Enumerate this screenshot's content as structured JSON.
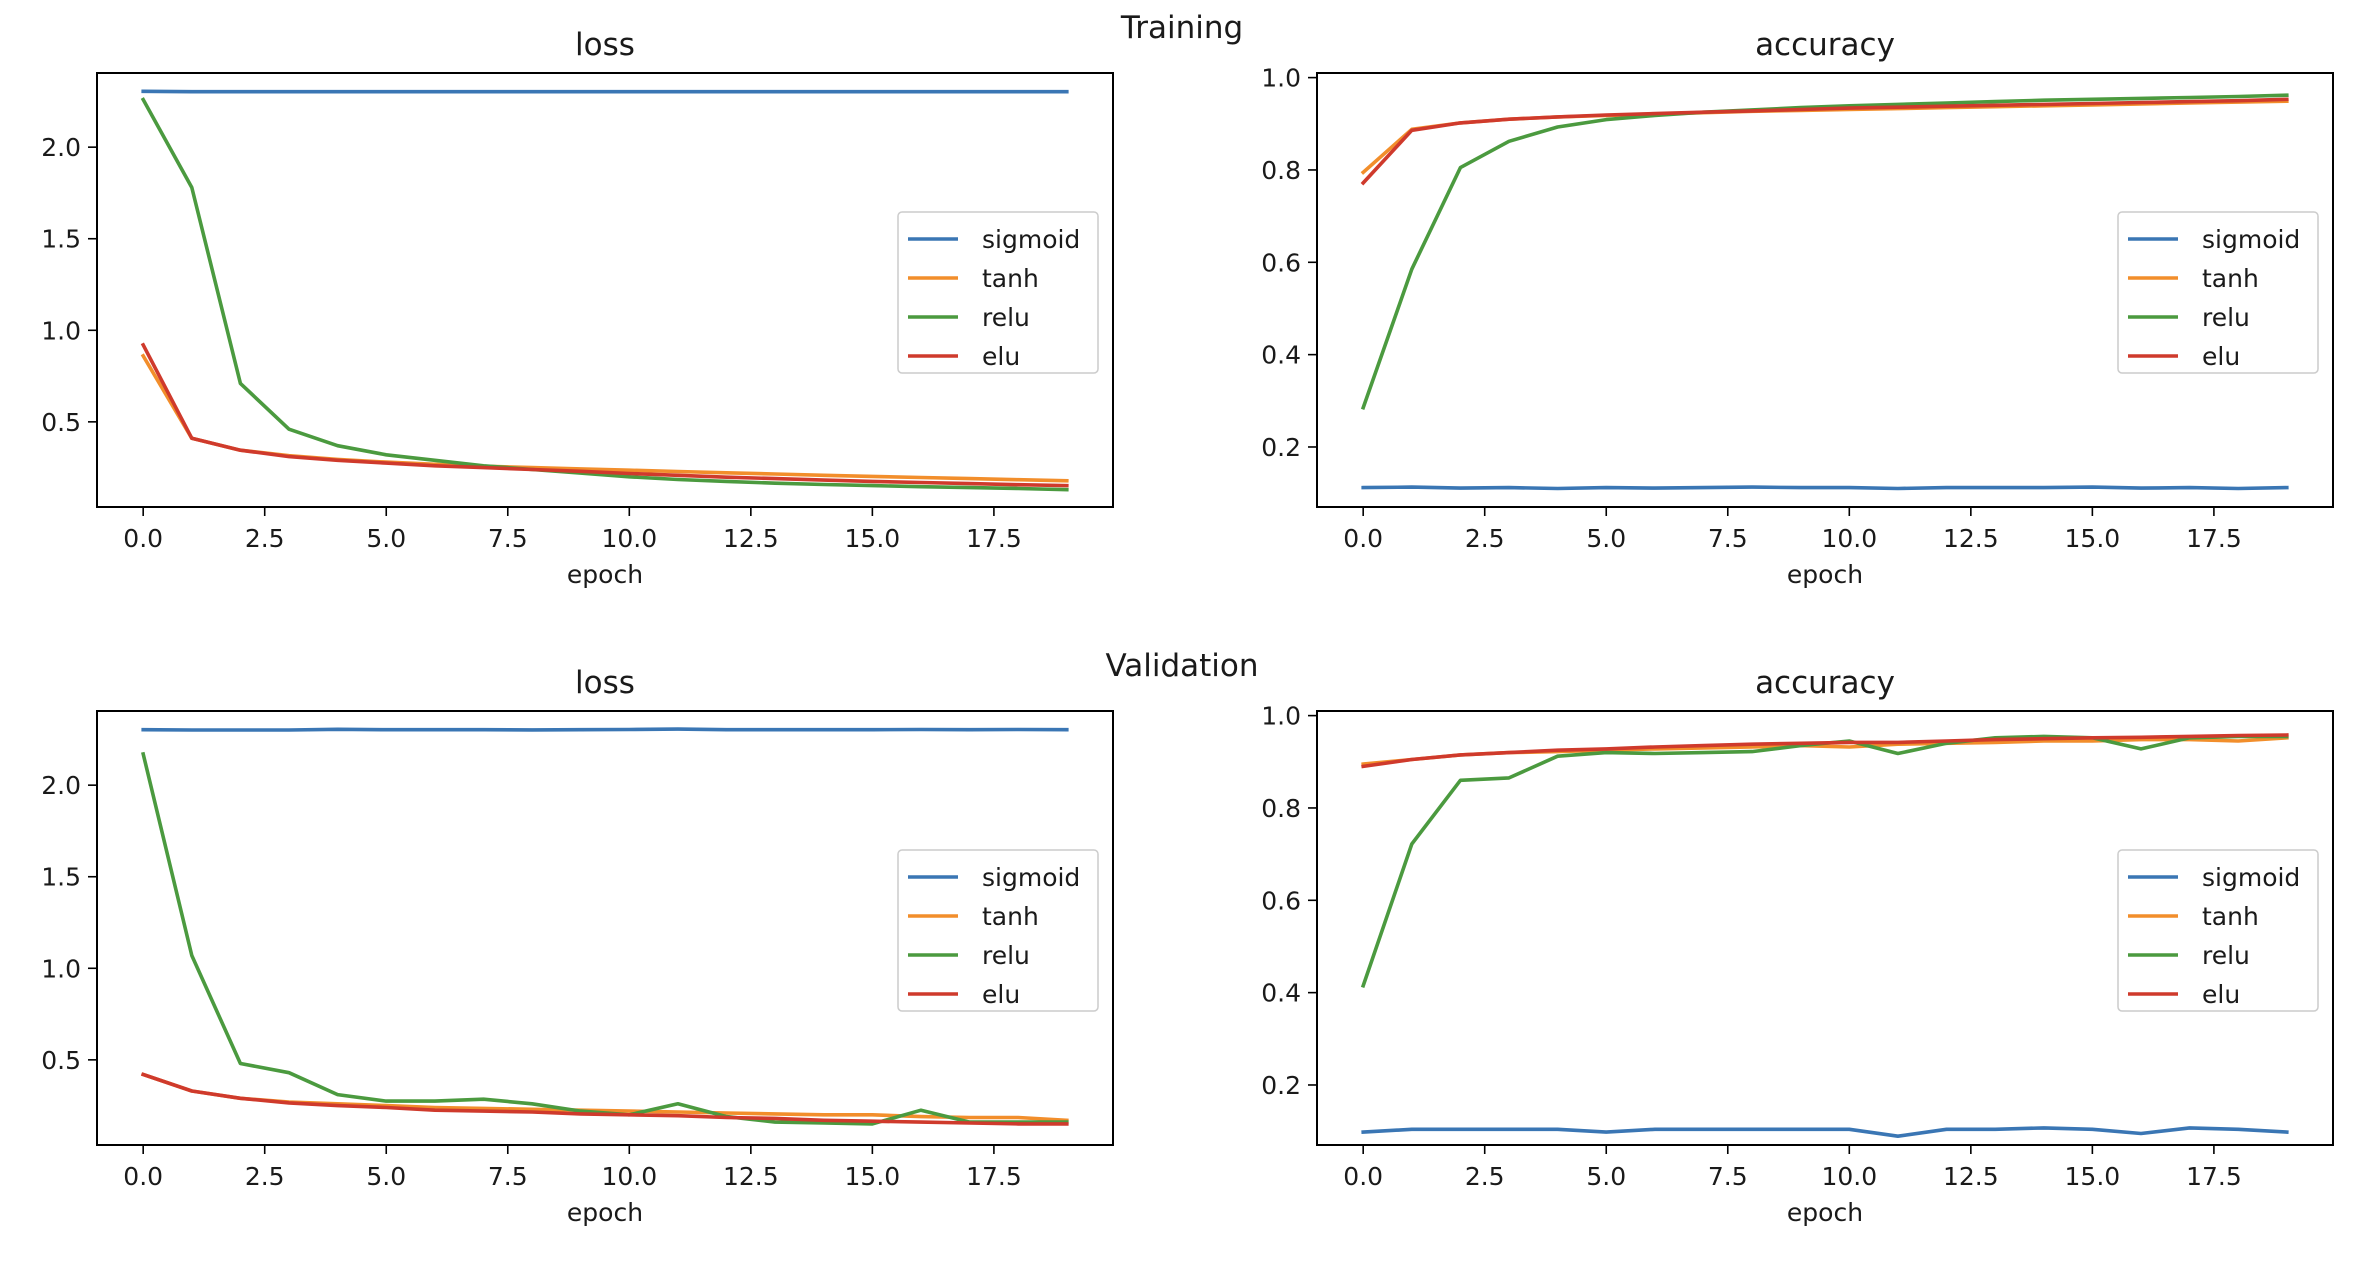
{
  "figure": {
    "title_training": "Training",
    "title_validation": "Validation"
  },
  "colors": {
    "sigmoid": "#3a76b4",
    "tanh": "#f28e2b",
    "relu": "#4b9a3f",
    "elu": "#cf3a2c"
  },
  "chart_data": [
    {
      "id": "training-loss",
      "type": "line",
      "title": "loss",
      "xlabel": "epoch",
      "ylabel": "",
      "xlim": [
        -0.95,
        19.95
      ],
      "ylim": [
        0.035,
        2.405
      ],
      "xticks": [
        0,
        2.5,
        5,
        7.5,
        10,
        12.5,
        15,
        17.5
      ],
      "xtick_labels": [
        "0.0",
        "2.5",
        "5.0",
        "7.5",
        "10.0",
        "12.5",
        "15.0",
        "17.5"
      ],
      "yticks": [
        0.5,
        1.0,
        1.5,
        2.0
      ],
      "ytick_labels": [
        "0.5",
        "1.0",
        "1.5",
        "2.0"
      ],
      "legend": {
        "position": "center-right",
        "entries": [
          "sigmoid",
          "tanh",
          "relu",
          "elu"
        ]
      },
      "x": [
        0,
        1,
        2,
        3,
        4,
        5,
        6,
        7,
        8,
        9,
        10,
        11,
        12,
        13,
        14,
        15,
        16,
        17,
        18,
        19
      ],
      "series": [
        {
          "name": "sigmoid",
          "values": [
            2.305,
            2.303,
            2.303,
            2.303,
            2.303,
            2.303,
            2.303,
            2.303,
            2.303,
            2.303,
            2.303,
            2.303,
            2.303,
            2.303,
            2.303,
            2.303,
            2.303,
            2.303,
            2.303,
            2.303
          ]
        },
        {
          "name": "tanh",
          "values": [
            0.86,
            0.41,
            0.345,
            0.315,
            0.295,
            0.28,
            0.268,
            0.258,
            0.25,
            0.243,
            0.236,
            0.229,
            0.222,
            0.215,
            0.208,
            0.202,
            0.196,
            0.19,
            0.184,
            0.178
          ]
        },
        {
          "name": "relu",
          "values": [
            2.26,
            1.78,
            0.71,
            0.46,
            0.37,
            0.32,
            0.29,
            0.26,
            0.24,
            0.22,
            0.2,
            0.185,
            0.175,
            0.165,
            0.158,
            0.152,
            0.146,
            0.141,
            0.136,
            0.13
          ]
        },
        {
          "name": "elu",
          "values": [
            0.92,
            0.41,
            0.345,
            0.31,
            0.29,
            0.275,
            0.26,
            0.25,
            0.24,
            0.23,
            0.218,
            0.208,
            0.198,
            0.19,
            0.182,
            0.175,
            0.169,
            0.163,
            0.157,
            0.152
          ]
        }
      ]
    },
    {
      "id": "training-accuracy",
      "type": "line",
      "title": "accuracy",
      "xlabel": "epoch",
      "ylabel": "",
      "xlim": [
        -0.95,
        19.95
      ],
      "ylim": [
        0.07,
        1.01
      ],
      "xticks": [
        0,
        2.5,
        5,
        7.5,
        10,
        12.5,
        15,
        17.5
      ],
      "xtick_labels": [
        "0.0",
        "2.5",
        "5.0",
        "7.5",
        "10.0",
        "12.5",
        "15.0",
        "17.5"
      ],
      "yticks": [
        0.2,
        0.4,
        0.6,
        0.8,
        1.0
      ],
      "ytick_labels": [
        "0.2",
        "0.4",
        "0.6",
        "0.8",
        "1.0"
      ],
      "legend": {
        "position": "center-right",
        "entries": [
          "sigmoid",
          "tanh",
          "relu",
          "elu"
        ]
      },
      "x": [
        0,
        1,
        2,
        3,
        4,
        5,
        6,
        7,
        8,
        9,
        10,
        11,
        12,
        13,
        14,
        15,
        16,
        17,
        18,
        19
      ],
      "series": [
        {
          "name": "sigmoid",
          "values": [
            0.112,
            0.113,
            0.111,
            0.112,
            0.11,
            0.112,
            0.111,
            0.112,
            0.113,
            0.112,
            0.112,
            0.11,
            0.112,
            0.112,
            0.112,
            0.113,
            0.111,
            0.112,
            0.11,
            0.112
          ]
        },
        {
          "name": "tanh",
          "values": [
            0.795,
            0.888,
            0.902,
            0.91,
            0.915,
            0.918,
            0.921,
            0.924,
            0.927,
            0.929,
            0.931,
            0.933,
            0.935,
            0.937,
            0.939,
            0.941,
            0.943,
            0.945,
            0.947,
            0.949
          ]
        },
        {
          "name": "relu",
          "values": [
            0.285,
            0.585,
            0.805,
            0.862,
            0.893,
            0.909,
            0.918,
            0.925,
            0.93,
            0.935,
            0.939,
            0.942,
            0.945,
            0.948,
            0.951,
            0.953,
            0.955,
            0.957,
            0.959,
            0.962
          ]
        },
        {
          "name": "elu",
          "values": [
            0.772,
            0.886,
            0.902,
            0.91,
            0.915,
            0.919,
            0.922,
            0.925,
            0.928,
            0.931,
            0.934,
            0.936,
            0.938,
            0.94,
            0.942,
            0.944,
            0.946,
            0.948,
            0.95,
            0.953
          ]
        }
      ]
    },
    {
      "id": "validation-loss",
      "type": "line",
      "title": "loss",
      "xlabel": "epoch",
      "ylabel": "",
      "xlim": [
        -0.95,
        19.95
      ],
      "ylim": [
        0.035,
        2.405
      ],
      "xticks": [
        0,
        2.5,
        5,
        7.5,
        10,
        12.5,
        15,
        17.5
      ],
      "xtick_labels": [
        "0.0",
        "2.5",
        "5.0",
        "7.5",
        "10.0",
        "12.5",
        "15.0",
        "17.5"
      ],
      "yticks": [
        0.5,
        1.0,
        1.5,
        2.0
      ],
      "ytick_labels": [
        "0.5",
        "1.0",
        "1.5",
        "2.0"
      ],
      "legend": {
        "position": "center-right",
        "entries": [
          "sigmoid",
          "tanh",
          "relu",
          "elu"
        ]
      },
      "x": [
        0,
        1,
        2,
        3,
        4,
        5,
        6,
        7,
        8,
        9,
        10,
        11,
        12,
        13,
        14,
        15,
        16,
        17,
        18,
        19
      ],
      "series": [
        {
          "name": "sigmoid",
          "values": [
            2.303,
            2.301,
            2.301,
            2.301,
            2.305,
            2.303,
            2.303,
            2.303,
            2.302,
            2.303,
            2.304,
            2.306,
            2.303,
            2.303,
            2.303,
            2.303,
            2.304,
            2.303,
            2.304,
            2.303
          ]
        },
        {
          "name": "tanh",
          "values": [
            0.42,
            0.33,
            0.29,
            0.27,
            0.26,
            0.25,
            0.24,
            0.235,
            0.23,
            0.225,
            0.22,
            0.215,
            0.21,
            0.205,
            0.2,
            0.2,
            0.19,
            0.185,
            0.185,
            0.17
          ]
        },
        {
          "name": "relu",
          "values": [
            2.17,
            1.07,
            0.48,
            0.43,
            0.31,
            0.275,
            0.275,
            0.285,
            0.26,
            0.22,
            0.2,
            0.26,
            0.19,
            0.16,
            0.155,
            0.15,
            0.225,
            0.16,
            0.16,
            0.16
          ]
        },
        {
          "name": "elu",
          "values": [
            0.42,
            0.33,
            0.29,
            0.265,
            0.25,
            0.24,
            0.225,
            0.22,
            0.215,
            0.205,
            0.2,
            0.195,
            0.185,
            0.18,
            0.17,
            0.165,
            0.16,
            0.155,
            0.15,
            0.15
          ]
        }
      ]
    },
    {
      "id": "validation-accuracy",
      "type": "line",
      "title": "accuracy",
      "xlabel": "epoch",
      "ylabel": "",
      "xlim": [
        -0.95,
        19.95
      ],
      "ylim": [
        0.07,
        1.01
      ],
      "xticks": [
        0,
        2.5,
        5,
        7.5,
        10,
        12.5,
        15,
        17.5
      ],
      "xtick_labels": [
        "0.0",
        "2.5",
        "5.0",
        "7.5",
        "10.0",
        "12.5",
        "15.0",
        "17.5"
      ],
      "yticks": [
        0.2,
        0.4,
        0.6,
        0.8,
        1.0
      ],
      "ytick_labels": [
        "0.2",
        "0.4",
        "0.6",
        "0.8",
        "1.0"
      ],
      "legend": {
        "position": "center-right",
        "entries": [
          "sigmoid",
          "tanh",
          "relu",
          "elu"
        ]
      },
      "x": [
        0,
        1,
        2,
        3,
        4,
        5,
        6,
        7,
        8,
        9,
        10,
        11,
        12,
        13,
        14,
        15,
        16,
        17,
        18,
        19
      ],
      "series": [
        {
          "name": "sigmoid",
          "values": [
            0.098,
            0.104,
            0.104,
            0.104,
            0.104,
            0.098,
            0.104,
            0.104,
            0.104,
            0.104,
            0.104,
            0.089,
            0.104,
            0.104,
            0.107,
            0.104,
            0.095,
            0.107,
            0.104,
            0.098
          ]
        },
        {
          "name": "tanh",
          "values": [
            0.895,
            0.905,
            0.915,
            0.92,
            0.922,
            0.925,
            0.928,
            0.93,
            0.932,
            0.935,
            0.932,
            0.938,
            0.94,
            0.942,
            0.945,
            0.945,
            0.948,
            0.948,
            0.945,
            0.952
          ]
        },
        {
          "name": "relu",
          "values": [
            0.415,
            0.722,
            0.86,
            0.865,
            0.912,
            0.92,
            0.918,
            0.92,
            0.922,
            0.935,
            0.945,
            0.918,
            0.94,
            0.952,
            0.955,
            0.952,
            0.928,
            0.952,
            0.955,
            0.955
          ]
        },
        {
          "name": "elu",
          "values": [
            0.89,
            0.905,
            0.915,
            0.92,
            0.925,
            0.928,
            0.932,
            0.935,
            0.938,
            0.94,
            0.942,
            0.942,
            0.945,
            0.948,
            0.95,
            0.952,
            0.953,
            0.955,
            0.957,
            0.958
          ]
        }
      ]
    }
  ]
}
